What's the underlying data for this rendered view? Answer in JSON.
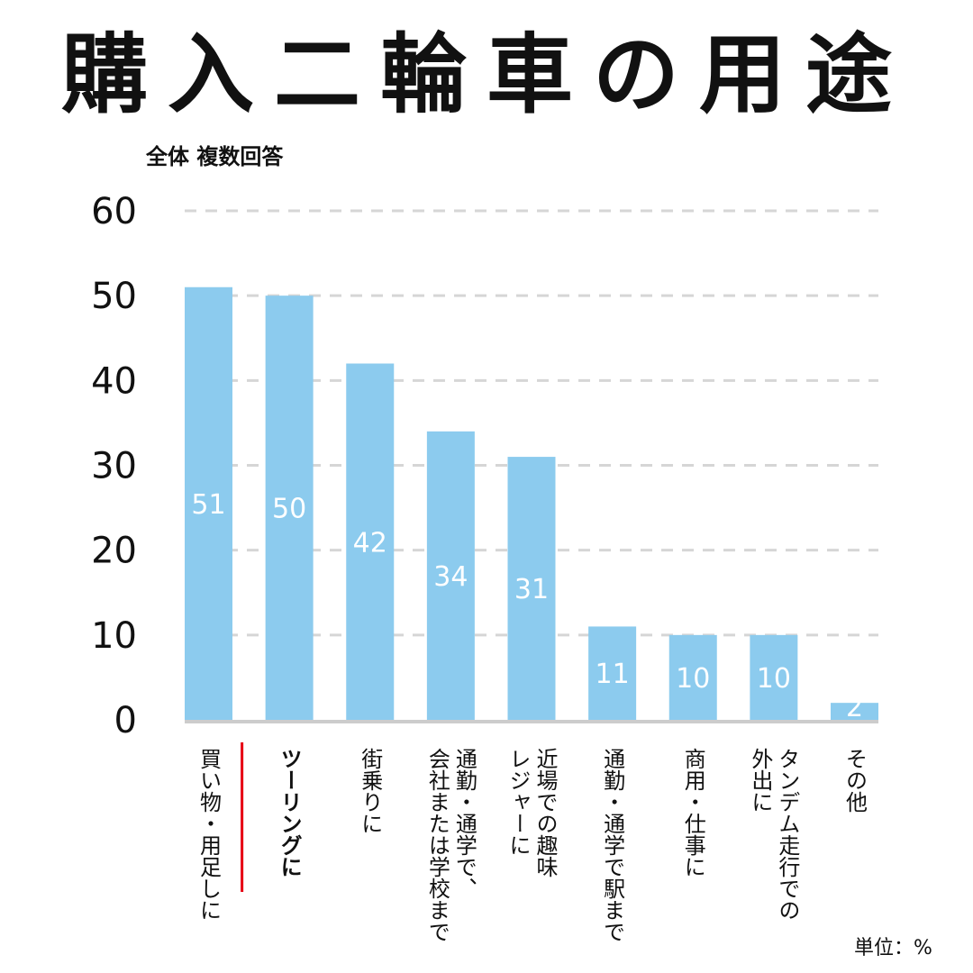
{
  "title": "購入二輪車の用途",
  "subtitle": "全体 複数回答",
  "unit_note": "単位：%",
  "colors": {
    "bar": "#8ccbee",
    "grid": "#d6d6d6",
    "highlight": "#e60012",
    "value_text": "#ffffff",
    "baseline": "#cccccc"
  },
  "chart_data": {
    "type": "bar",
    "categories": [
      [
        "買い物・用足しに"
      ],
      [
        "ツーリングに"
      ],
      [
        "街乗りに"
      ],
      [
        "通勤・通学で、",
        "会社または学校まで"
      ],
      [
        "近場での趣味",
        "レジャーに"
      ],
      [
        "通勤・通学で駅まで"
      ],
      [
        "商用・仕事に"
      ],
      [
        "タンデム走行での",
        "外出に"
      ],
      [
        "その他"
      ]
    ],
    "values": [
      51,
      50,
      42,
      34,
      31,
      11,
      10,
      10,
      2
    ],
    "highlighted_category_index": 1,
    "y_ticks": [
      0,
      10,
      20,
      30,
      40,
      50,
      60
    ],
    "ylim": [
      0,
      60
    ],
    "grid": "dashed horizontal",
    "data_labels": true
  }
}
